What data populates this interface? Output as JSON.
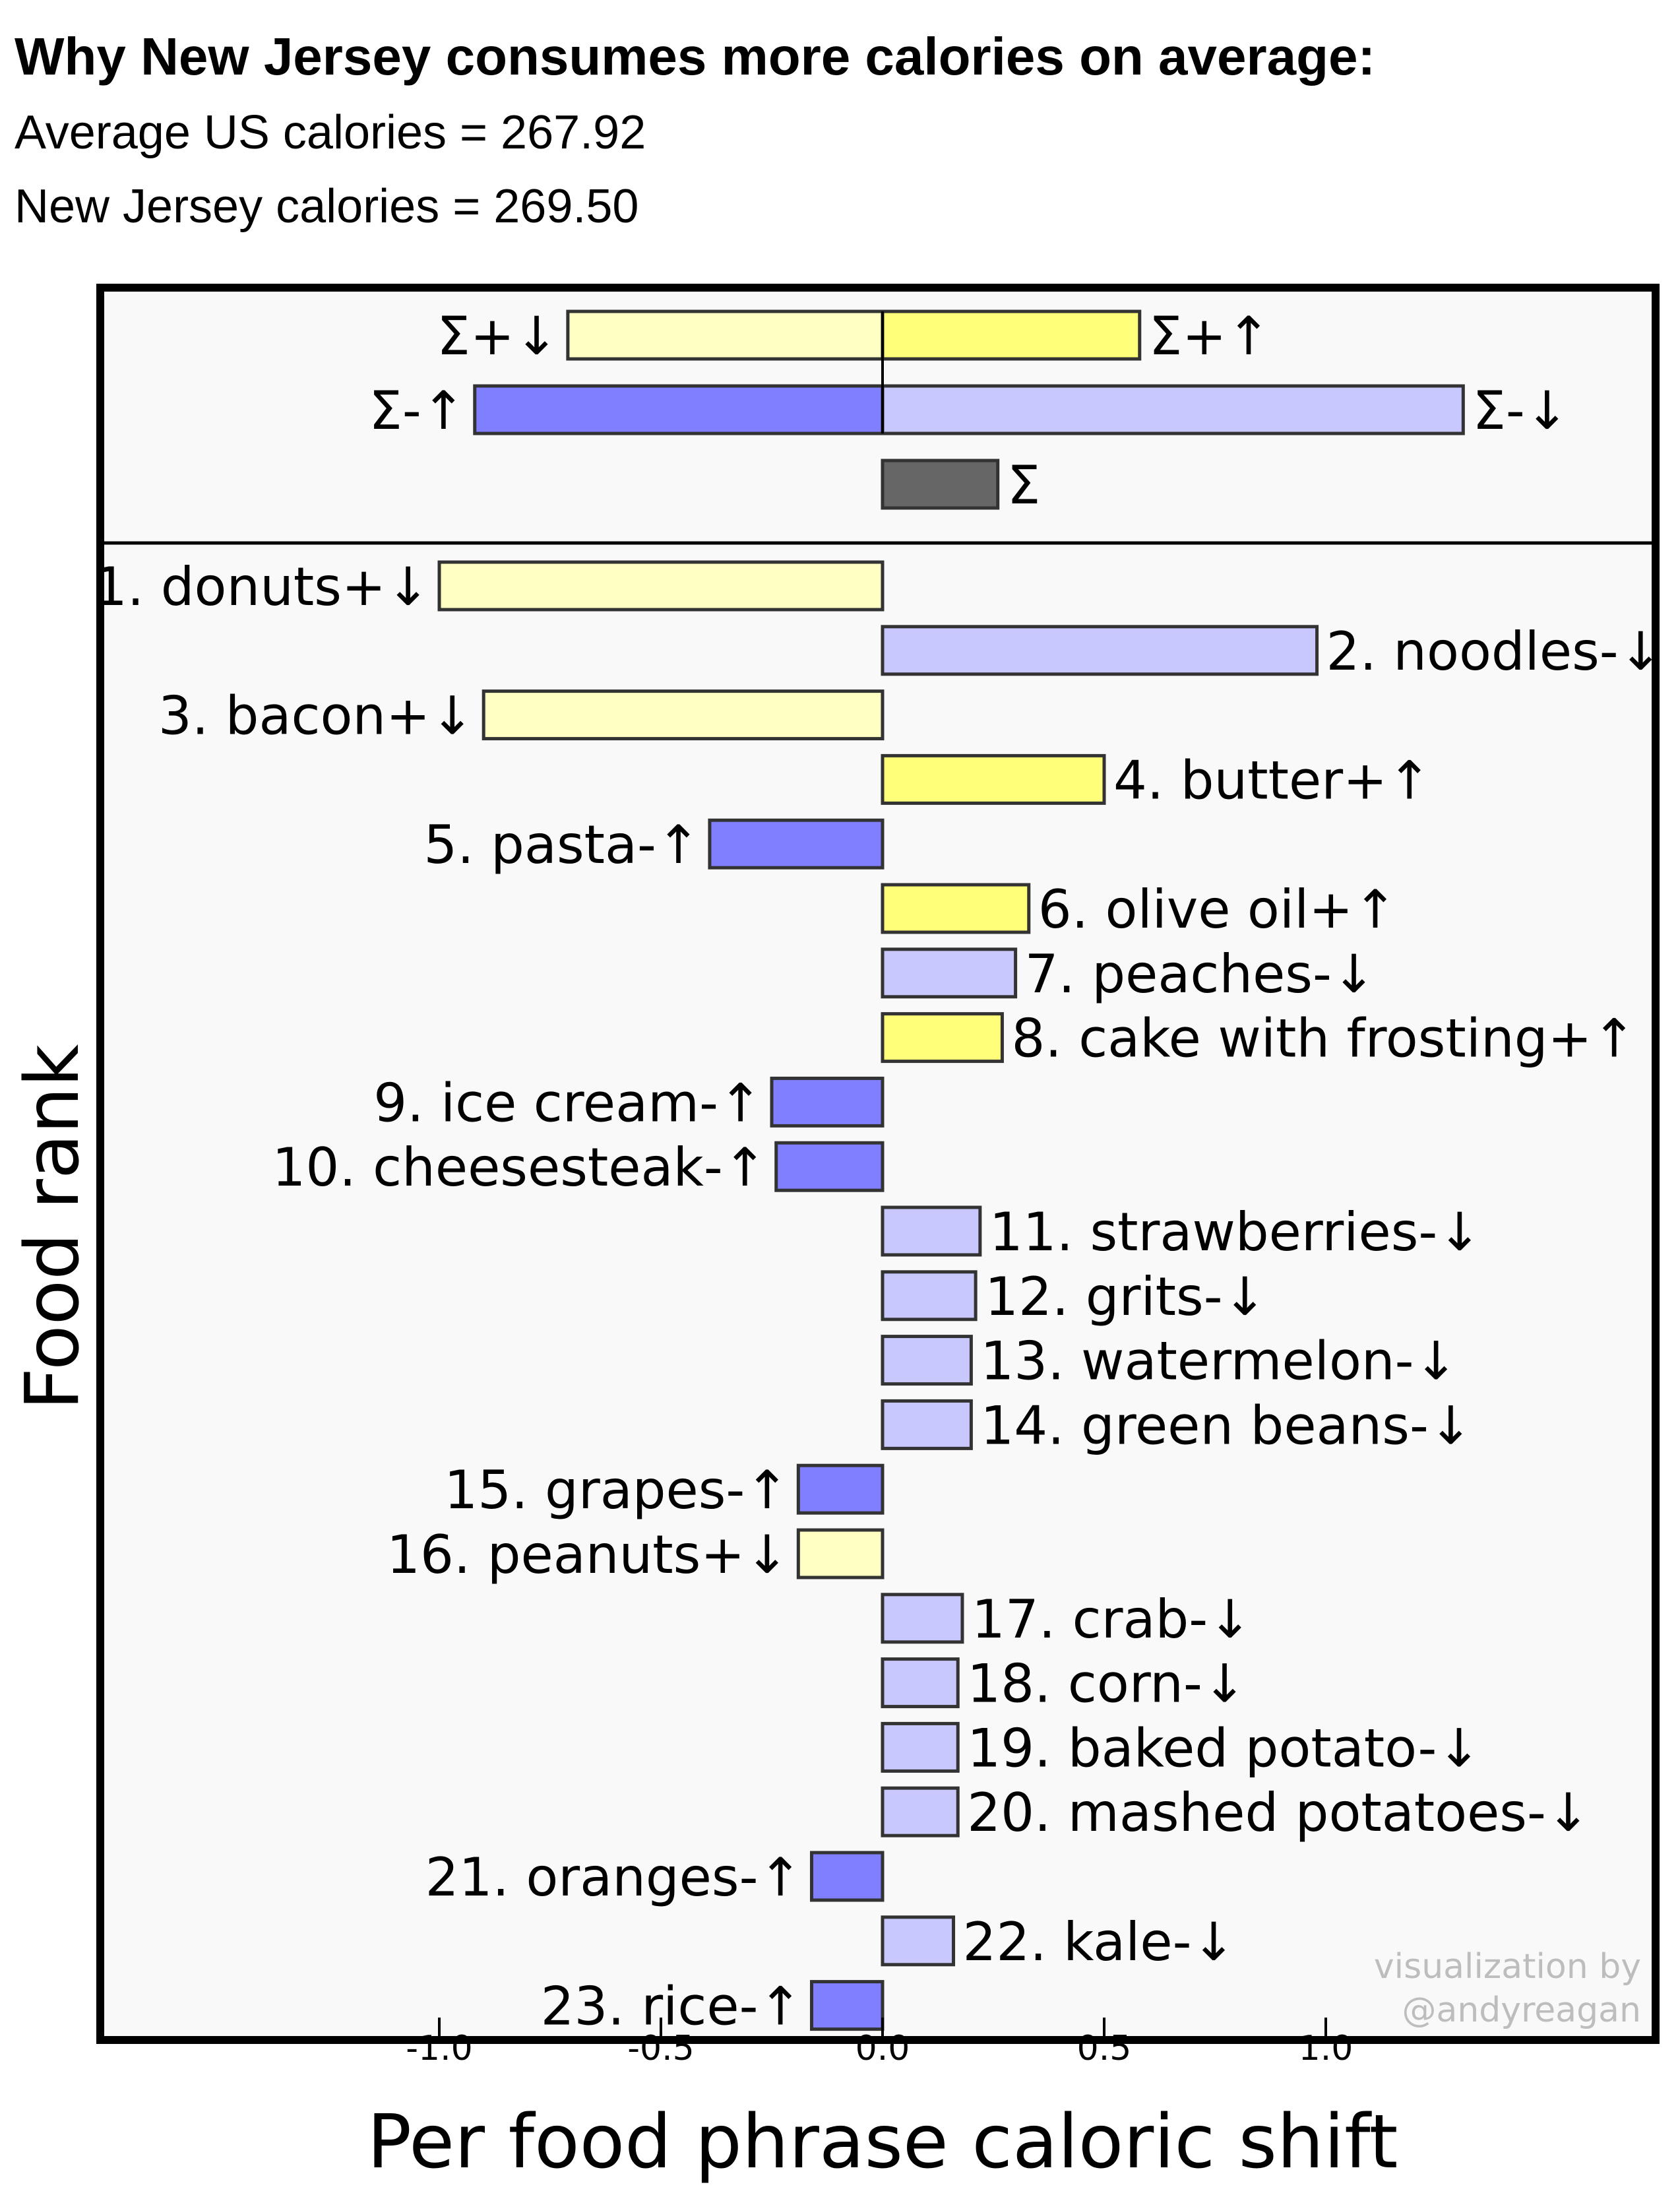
{
  "header": {
    "title": "Why New Jersey consumes more calories on average:",
    "line1": "Average US calories = 267.92",
    "line2": "New Jersey calories = 269.50"
  },
  "credit": {
    "line1": "visualization by",
    "line2": "@andyreagan"
  },
  "colors": {
    "plus_down": "#ffffc4",
    "plus_up": "#ffff7a",
    "minus_up": "#7f7fff",
    "minus_down": "#c8c8ff",
    "sum": "#666666",
    "panel_bg": "#f9f9f9",
    "bar_stroke": "#333333"
  },
  "chart_data": {
    "type": "bar",
    "orientation": "horizontal",
    "xlabel": "Per food phrase caloric shift",
    "ylabel": "Food rank",
    "xlim": [
      -1.75,
      1.75
    ],
    "xticks": [
      {
        "value": -1.0,
        "label": "-1.0"
      },
      {
        "value": -0.5,
        "label": "-0.5"
      },
      {
        "value": 0.0,
        "label": "0.0"
      },
      {
        "value": 0.5,
        "label": "0.5"
      },
      {
        "value": 1.0,
        "label": "1.0"
      }
    ],
    "summary": [
      {
        "label": "Σ+↓",
        "value": -0.71,
        "color": "plus_down",
        "row": 0,
        "labelSide": "left"
      },
      {
        "label": "Σ+↑",
        "value": 0.58,
        "color": "plus_up",
        "row": 0,
        "labelSide": "right"
      },
      {
        "label": "Σ-↑",
        "value": -0.92,
        "color": "minus_up",
        "row": 1,
        "labelSide": "left"
      },
      {
        "label": "Σ-↓",
        "value": 1.31,
        "color": "minus_down",
        "row": 1,
        "labelSide": "right"
      },
      {
        "label": "Σ",
        "value": 0.26,
        "color": "sum",
        "row": 2,
        "labelSide": "right"
      }
    ],
    "items": [
      {
        "label": "1. donuts+↓",
        "value": -1.0,
        "color": "plus_down"
      },
      {
        "label": "2. noodles-↓",
        "value": 0.98,
        "color": "minus_down"
      },
      {
        "label": "3. bacon+↓",
        "value": -0.9,
        "color": "plus_down"
      },
      {
        "label": "4. butter+↑",
        "value": 0.5,
        "color": "plus_up"
      },
      {
        "label": "5. pasta-↑",
        "value": -0.39,
        "color": "minus_up"
      },
      {
        "label": "6. olive oil+↑",
        "value": 0.33,
        "color": "plus_up"
      },
      {
        "label": "7. peaches-↓",
        "value": 0.3,
        "color": "minus_down"
      },
      {
        "label": "8. cake with frosting+↑",
        "value": 0.27,
        "color": "plus_up"
      },
      {
        "label": "9. ice cream-↑",
        "value": -0.25,
        "color": "minus_up"
      },
      {
        "label": "10. cheesesteak-↑",
        "value": -0.24,
        "color": "minus_up"
      },
      {
        "label": "11. strawberries-↓",
        "value": 0.22,
        "color": "minus_down"
      },
      {
        "label": "12. grits-↓",
        "value": 0.21,
        "color": "minus_down"
      },
      {
        "label": "13. watermelon-↓",
        "value": 0.2,
        "color": "minus_down"
      },
      {
        "label": "14. green beans-↓",
        "value": 0.2,
        "color": "minus_down"
      },
      {
        "label": "15. grapes-↑",
        "value": -0.19,
        "color": "minus_up"
      },
      {
        "label": "16. peanuts+↓",
        "value": -0.19,
        "color": "plus_down"
      },
      {
        "label": "17. crab-↓",
        "value": 0.18,
        "color": "minus_down"
      },
      {
        "label": "18. corn-↓",
        "value": 0.17,
        "color": "minus_down"
      },
      {
        "label": "19. baked potato-↓",
        "value": 0.17,
        "color": "minus_down"
      },
      {
        "label": "20. mashed potatoes-↓",
        "value": 0.17,
        "color": "minus_down"
      },
      {
        "label": "21. oranges-↑",
        "value": -0.16,
        "color": "minus_up"
      },
      {
        "label": "22. kale-↓",
        "value": 0.16,
        "color": "minus_down"
      },
      {
        "label": "23. rice-↑",
        "value": -0.16,
        "color": "minus_up"
      }
    ]
  }
}
